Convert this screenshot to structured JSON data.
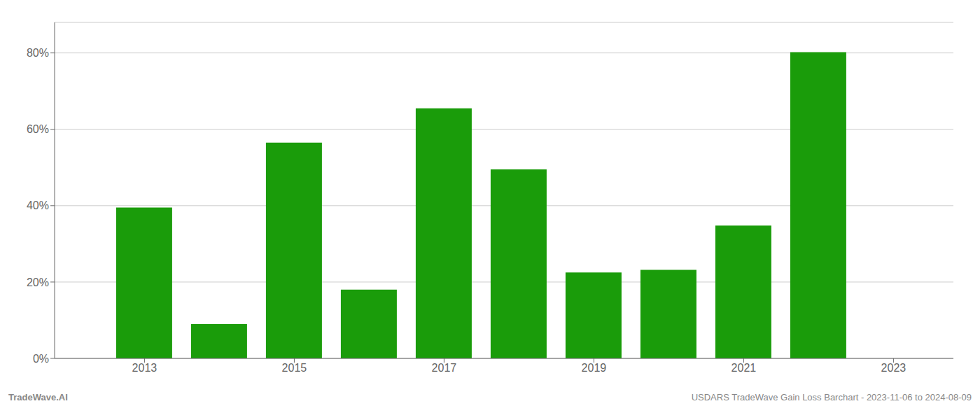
{
  "chart_data": {
    "type": "bar",
    "x": [
      2013,
      2014,
      2015,
      2016,
      2017,
      2018,
      2019,
      2020,
      2021,
      2022
    ],
    "values": [
      0.395,
      0.09,
      0.565,
      0.18,
      0.655,
      0.495,
      0.225,
      0.232,
      0.348,
      0.802
    ],
    "color": "#1a9c0a",
    "xlim": [
      2011.8,
      2023.8
    ],
    "xticks": [
      2013,
      2015,
      2017,
      2019,
      2021,
      2023
    ],
    "ylim": [
      0,
      0.88
    ],
    "yticks": [
      {
        "value": 0.0,
        "label": "0%"
      },
      {
        "value": 0.2,
        "label": "20%"
      },
      {
        "value": 0.4,
        "label": "40%"
      },
      {
        "value": 0.6,
        "label": "60%"
      },
      {
        "value": 0.8,
        "label": "80%"
      }
    ],
    "grid": true,
    "annotations": [
      "TradeWave.AI",
      "USDARS TradeWave Gain Loss Barchart - 2023-11-06 to 2024-08-09"
    ]
  }
}
